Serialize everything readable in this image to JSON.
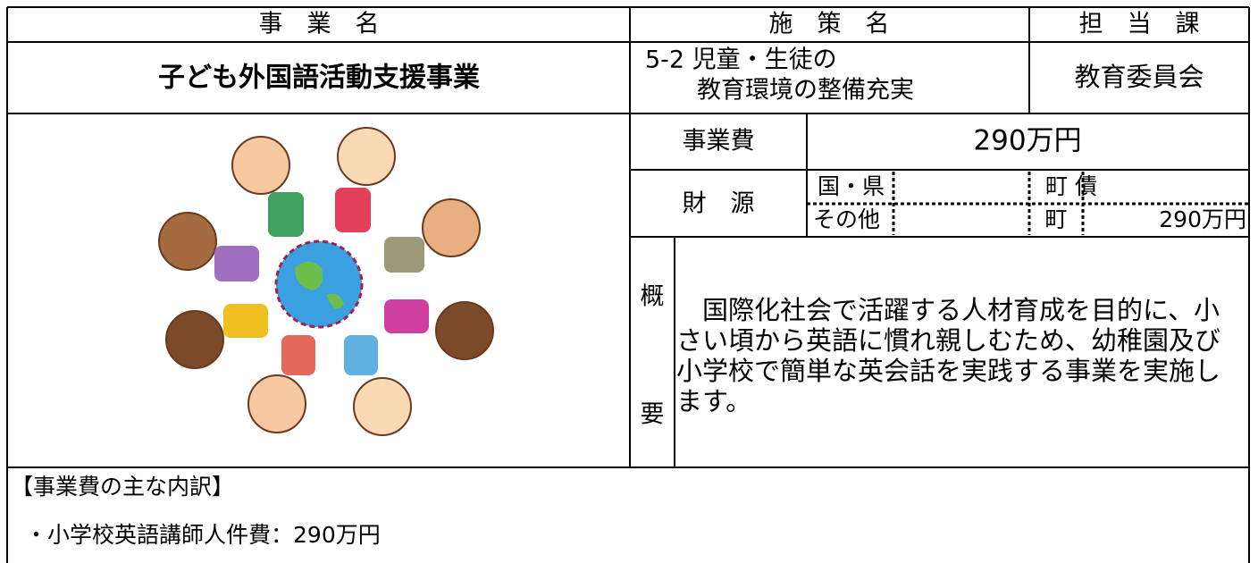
{
  "header": {
    "project": "事　業　名",
    "policy": "施　策　名",
    "department": "担　当　課"
  },
  "row": {
    "project": "子ども外国語活動支援事業",
    "policy_lines": [
      "5-2 児童・生徒の",
      "教育環境の整備充実"
    ],
    "department": "教育委員会"
  },
  "cost": {
    "label": "事業費",
    "value": "290万円"
  },
  "funding": {
    "label": "財　源",
    "national_prefectural": "国・県",
    "bond": "町 債",
    "other": "その他",
    "town": "町",
    "town_value": "290万円"
  },
  "summary": {
    "label_top": "概",
    "label_bottom": "要",
    "lines": [
      "　国際化社会で活躍する人材育成を目的に、小",
      "さい頃から英語に慣れ親しむため、幼稚園及び",
      "小学校で簡単な英会話を実践する事業を実施し",
      "ます。"
    ]
  },
  "breakdown": {
    "title": "【事業費の主な内訳】",
    "items": [
      "・小学校英語講師人件費：290万円"
    ]
  }
}
